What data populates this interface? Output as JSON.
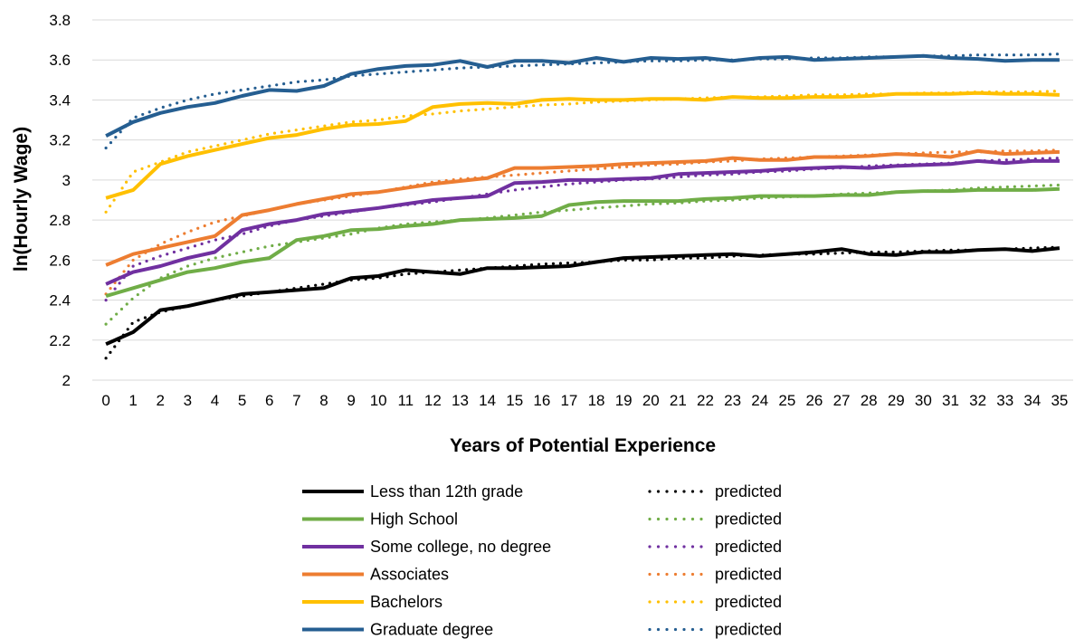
{
  "chart_data": {
    "type": "line",
    "xlabel": "Years of Potential Experience",
    "ylabel": "ln(Hourly Wage)",
    "ylim": [
      2,
      3.8
    ],
    "ytick_step": 0.2,
    "ytick_labels": [
      "2",
      "2.2",
      "2.4",
      "2.6",
      "2.8",
      "3",
      "3.2",
      "3.4",
      "3.6",
      "3.8"
    ],
    "x": [
      0,
      1,
      2,
      3,
      4,
      5,
      6,
      7,
      8,
      9,
      10,
      11,
      12,
      13,
      14,
      15,
      16,
      17,
      18,
      19,
      20,
      21,
      22,
      23,
      24,
      25,
      26,
      27,
      28,
      29,
      30,
      31,
      32,
      33,
      34,
      35
    ],
    "grid": true,
    "legend_placement": "bottom",
    "series": [
      {
        "name": "Less than 12th grade",
        "style": "solid",
        "color": "#000000",
        "values": [
          2.18,
          2.24,
          2.35,
          2.37,
          2.4,
          2.43,
          2.44,
          2.45,
          2.46,
          2.51,
          2.52,
          2.55,
          2.54,
          2.53,
          2.56,
          2.56,
          2.565,
          2.57,
          2.59,
          2.61,
          2.615,
          2.62,
          2.625,
          2.63,
          2.62,
          2.63,
          2.64,
          2.655,
          2.63,
          2.625,
          2.64,
          2.64,
          2.65,
          2.655,
          2.645,
          2.66
        ]
      },
      {
        "name": "predicted",
        "style": "dotted",
        "color": "#000000",
        "values": [
          2.11,
          2.29,
          2.34,
          2.37,
          2.4,
          2.42,
          2.44,
          2.46,
          2.48,
          2.5,
          2.51,
          2.53,
          2.54,
          2.55,
          2.56,
          2.57,
          2.58,
          2.585,
          2.59,
          2.6,
          2.6,
          2.61,
          2.61,
          2.62,
          2.625,
          2.63,
          2.63,
          2.635,
          2.64,
          2.64,
          2.645,
          2.65,
          2.65,
          2.655,
          2.66,
          2.665
        ]
      },
      {
        "name": "High School",
        "style": "solid",
        "color": "#70ad47",
        "values": [
          2.42,
          2.46,
          2.5,
          2.54,
          2.56,
          2.59,
          2.61,
          2.7,
          2.72,
          2.75,
          2.755,
          2.77,
          2.78,
          2.8,
          2.805,
          2.81,
          2.82,
          2.875,
          2.89,
          2.895,
          2.895,
          2.895,
          2.905,
          2.91,
          2.92,
          2.92,
          2.92,
          2.925,
          2.925,
          2.94,
          2.945,
          2.945,
          2.95,
          2.95,
          2.95,
          2.955
        ]
      },
      {
        "name": "predicted",
        "style": "dotted",
        "color": "#70ad47",
        "values": [
          2.28,
          2.41,
          2.51,
          2.57,
          2.61,
          2.64,
          2.67,
          2.69,
          2.71,
          2.73,
          2.76,
          2.78,
          2.79,
          2.8,
          2.81,
          2.825,
          2.84,
          2.85,
          2.86,
          2.87,
          2.88,
          2.885,
          2.895,
          2.9,
          2.91,
          2.915,
          2.92,
          2.93,
          2.935,
          2.94,
          2.945,
          2.95,
          2.96,
          2.965,
          2.97,
          2.975
        ]
      },
      {
        "name": "Some college, no degree",
        "style": "solid",
        "color": "#7030a0",
        "values": [
          2.48,
          2.54,
          2.57,
          2.61,
          2.64,
          2.75,
          2.78,
          2.8,
          2.83,
          2.845,
          2.86,
          2.88,
          2.9,
          2.91,
          2.92,
          2.985,
          2.99,
          3.0,
          3.0,
          3.005,
          3.01,
          3.03,
          3.035,
          3.04,
          3.045,
          3.055,
          3.06,
          3.065,
          3.06,
          3.07,
          3.075,
          3.08,
          3.095,
          3.085,
          3.095,
          3.095
        ]
      },
      {
        "name": "predicted",
        "style": "dotted",
        "color": "#7030a0",
        "values": [
          2.4,
          2.57,
          2.62,
          2.66,
          2.7,
          2.73,
          2.77,
          2.8,
          2.82,
          2.84,
          2.86,
          2.875,
          2.89,
          2.91,
          2.93,
          2.95,
          2.965,
          2.98,
          2.99,
          3.0,
          3.005,
          3.015,
          3.025,
          3.03,
          3.04,
          3.045,
          3.055,
          3.06,
          3.07,
          3.075,
          3.08,
          3.085,
          3.095,
          3.1,
          3.105,
          3.11
        ]
      },
      {
        "name": "Associates",
        "style": "solid",
        "color": "#ed7d31",
        "values": [
          2.575,
          2.63,
          2.66,
          2.69,
          2.72,
          2.825,
          2.85,
          2.88,
          2.905,
          2.93,
          2.94,
          2.96,
          2.98,
          2.995,
          3.01,
          3.06,
          3.06,
          3.065,
          3.07,
          3.08,
          3.085,
          3.09,
          3.095,
          3.11,
          3.1,
          3.1,
          3.115,
          3.115,
          3.12,
          3.13,
          3.125,
          3.115,
          3.145,
          3.13,
          3.135,
          3.14
        ]
      },
      {
        "name": "predicted",
        "style": "dotted",
        "color": "#ed7d31",
        "values": [
          2.43,
          2.6,
          2.68,
          2.74,
          2.79,
          2.82,
          2.85,
          2.88,
          2.9,
          2.92,
          2.94,
          2.965,
          2.99,
          3.005,
          3.015,
          3.025,
          3.035,
          3.045,
          3.055,
          3.065,
          3.075,
          3.08,
          3.09,
          3.095,
          3.105,
          3.11,
          3.115,
          3.12,
          3.125,
          3.13,
          3.135,
          3.14,
          3.14,
          3.145,
          3.145,
          3.15
        ]
      },
      {
        "name": "Bachelors",
        "style": "solid",
        "color": "#ffc000",
        "values": [
          2.91,
          2.95,
          3.08,
          3.12,
          3.15,
          3.18,
          3.21,
          3.225,
          3.255,
          3.275,
          3.28,
          3.295,
          3.365,
          3.38,
          3.385,
          3.38,
          3.4,
          3.405,
          3.4,
          3.4,
          3.405,
          3.405,
          3.4,
          3.415,
          3.41,
          3.41,
          3.415,
          3.415,
          3.42,
          3.43,
          3.43,
          3.43,
          3.435,
          3.43,
          3.43,
          3.425
        ]
      },
      {
        "name": "predicted",
        "style": "dotted",
        "color": "#ffc000",
        "values": [
          2.84,
          3.04,
          3.09,
          3.14,
          3.17,
          3.2,
          3.23,
          3.25,
          3.27,
          3.29,
          3.3,
          3.32,
          3.33,
          3.345,
          3.355,
          3.365,
          3.375,
          3.38,
          3.39,
          3.395,
          3.4,
          3.405,
          3.41,
          3.415,
          3.415,
          3.42,
          3.425,
          3.425,
          3.43,
          3.43,
          3.435,
          3.435,
          3.44,
          3.44,
          3.44,
          3.445
        ]
      },
      {
        "name": "Graduate degree",
        "style": "solid",
        "color": "#255e91",
        "values": [
          3.22,
          3.29,
          3.335,
          3.365,
          3.385,
          3.42,
          3.45,
          3.445,
          3.47,
          3.53,
          3.555,
          3.57,
          3.575,
          3.595,
          3.565,
          3.595,
          3.595,
          3.585,
          3.61,
          3.59,
          3.61,
          3.605,
          3.61,
          3.595,
          3.61,
          3.615,
          3.6,
          3.605,
          3.61,
          3.615,
          3.62,
          3.61,
          3.605,
          3.595,
          3.6,
          3.6
        ]
      },
      {
        "name": "predicted",
        "style": "dotted",
        "color": "#255e91",
        "values": [
          3.16,
          3.31,
          3.36,
          3.4,
          3.43,
          3.45,
          3.47,
          3.49,
          3.5,
          3.52,
          3.53,
          3.54,
          3.55,
          3.56,
          3.565,
          3.57,
          3.575,
          3.58,
          3.585,
          3.59,
          3.595,
          3.595,
          3.6,
          3.6,
          3.605,
          3.605,
          3.61,
          3.61,
          3.615,
          3.615,
          3.62,
          3.62,
          3.625,
          3.625,
          3.625,
          3.63
        ]
      }
    ]
  }
}
